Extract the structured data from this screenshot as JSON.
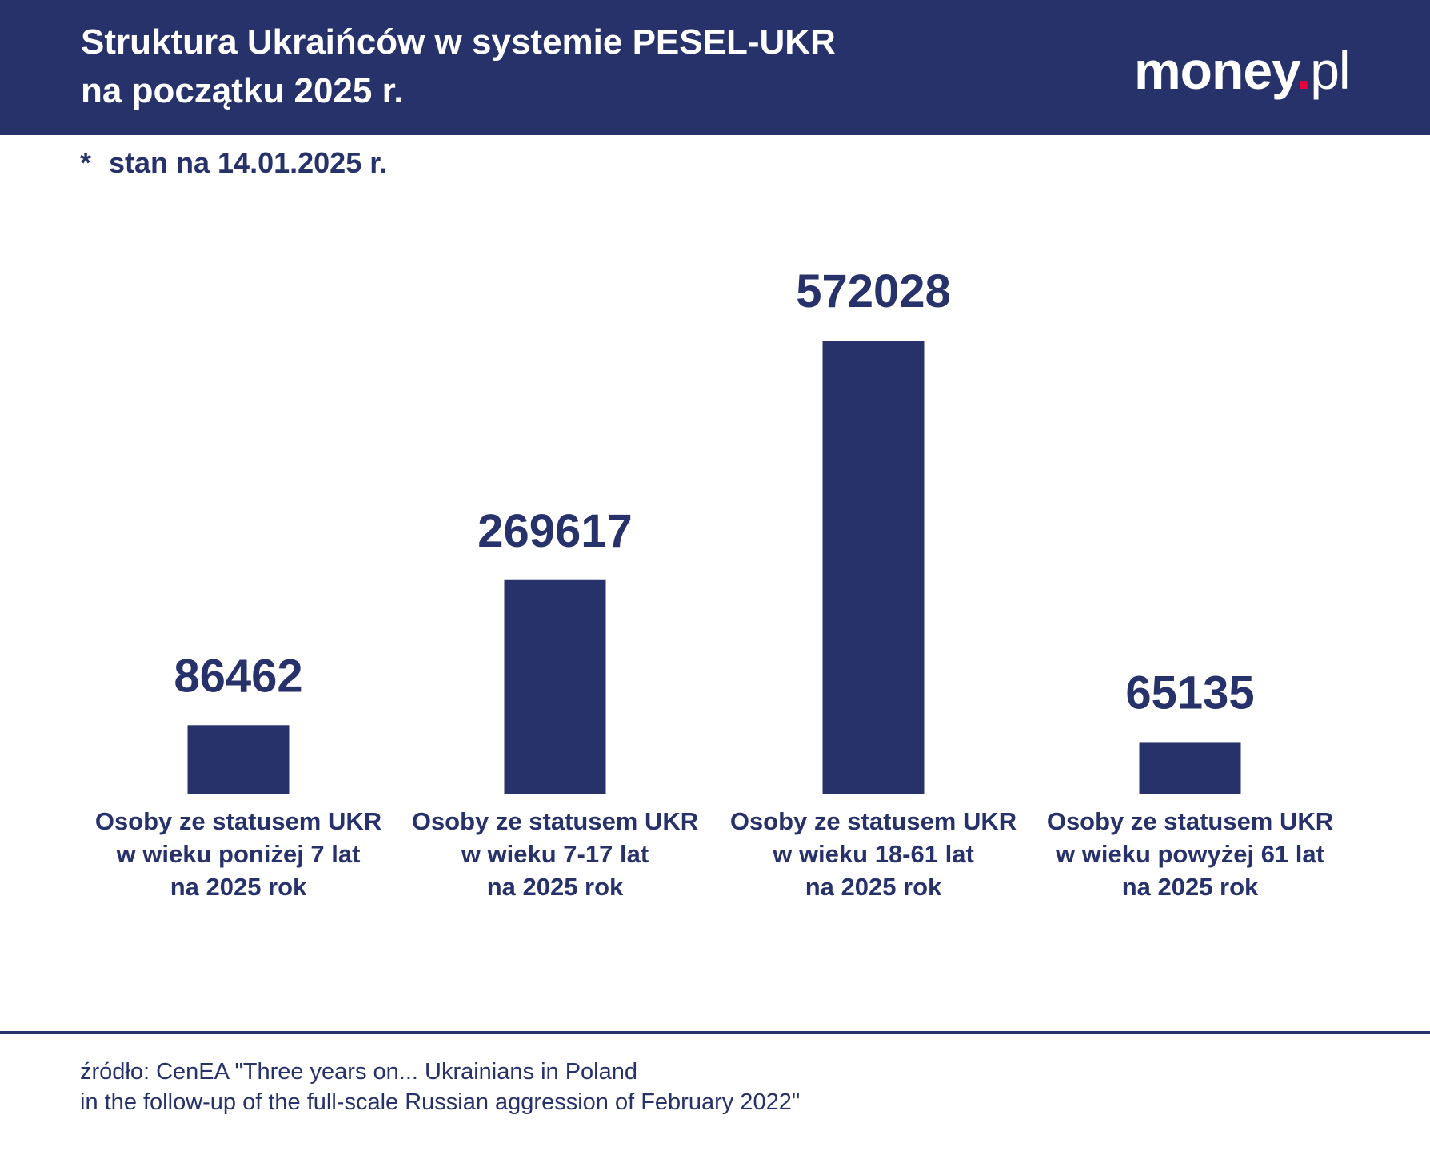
{
  "header": {
    "title_line1": "Struktura Ukraińców w systemie PESEL-UKR",
    "title_line2": "na początku 2025 r.",
    "logo": "money.pl"
  },
  "note": {
    "star": "*",
    "text": "stan na 14.01.2025 r."
  },
  "colors": {
    "brand": "#27326b",
    "accent": "#e8003d",
    "background": "#ffffff"
  },
  "chart_data": {
    "type": "bar",
    "title": "Struktura Ukraińców w systemie PESEL-UKR na początku 2025 r.",
    "categories": [
      [
        "Osoby ze statusem UKR",
        "w wieku poniżej 7 lat",
        "na 2025 rok"
      ],
      [
        "Osoby ze statusem UKR",
        "w wieku 7-17 lat",
        "na 2025 rok"
      ],
      [
        "Osoby ze statusem UKR",
        "w wieku 18-61 lat",
        "na 2025 rok"
      ],
      [
        "Osoby ze statusem UKR",
        "w wieku powyżej 61 lat",
        "na 2025 rok"
      ]
    ],
    "values": [
      86462,
      269617,
      572028,
      65135
    ],
    "value_labels": [
      "86462",
      "269617",
      "572028",
      "65135"
    ],
    "xlabel": "",
    "ylabel": "",
    "ylim": [
      0,
      572028
    ],
    "grid": false,
    "legend": "none"
  },
  "source": {
    "line1": "źródło: CenEA \"Three years on... Ukrainians in Poland",
    "line2": "in the follow-up of the full-scale Russian aggression of February 2022\""
  }
}
